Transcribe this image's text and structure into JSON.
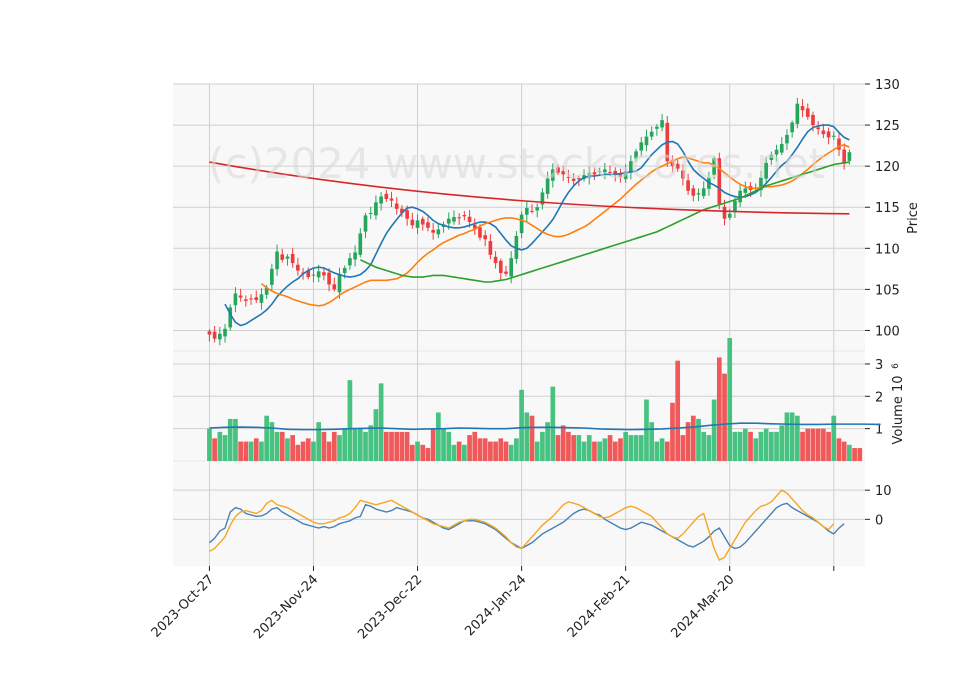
{
  "watermark": "(c)2024 www.stockscores.net",
  "chart_data": [
    {
      "type": "candlestick",
      "panel": "price",
      "ylabel": "Price",
      "ylim": [
        97.5,
        130
      ],
      "yticks": [
        100,
        105,
        110,
        115,
        120,
        125,
        130
      ],
      "x_ticks": [
        {
          "i": 0,
          "label": "2023-Oct-27"
        },
        {
          "i": 20,
          "label": "2023-Nov-24"
        },
        {
          "i": 40,
          "label": "2023-Dec-22"
        },
        {
          "i": 60,
          "label": "2024-Jan-24"
        },
        {
          "i": 80,
          "label": "2024-Feb-21"
        },
        {
          "i": 100,
          "label": "2024-Mar-20"
        },
        {
          "i": 120,
          "label": ""
        }
      ],
      "x_range": [
        -7,
        126
      ],
      "grid": true,
      "up_color": "#26a65b",
      "down_color": "#ef3b3b",
      "close": [
        99.5,
        99.0,
        99.6,
        100.2,
        102.8,
        104.5,
        104.0,
        103.6,
        103.9,
        103.7,
        104.4,
        105.2,
        107.5,
        109.6,
        108.6,
        109.0,
        108.2,
        107.3,
        107.0,
        106.5,
        106.8,
        107.2,
        106.7,
        105.6,
        105.0,
        106.9,
        107.6,
        108.8,
        109.5,
        111.8,
        114.0,
        114.3,
        115.6,
        116.3,
        116.0,
        115.8,
        114.8,
        114.3,
        113.6,
        112.8,
        113.4,
        112.9,
        112.5,
        111.9,
        112.3,
        112.9,
        113.6,
        113.8,
        113.7,
        113.9,
        113.2,
        112.4,
        111.3,
        111.1,
        109.2,
        108.2,
        107.0,
        106.9,
        108.8,
        111.5,
        114.1,
        114.9,
        114.5,
        115.0,
        116.8,
        118.5,
        119.6,
        119.2,
        119.0,
        118.6,
        118.2,
        118.4,
        118.9,
        119.2,
        119.0,
        119.4,
        119.6,
        119.2,
        118.9,
        118.7,
        119.4,
        120.6,
        121.8,
        122.9,
        123.6,
        124.2,
        124.8,
        125.6,
        120.6,
        120.0,
        119.7,
        118.5,
        117.0,
        116.4,
        116.7,
        117.3,
        118.6,
        121.0,
        115.4,
        113.6,
        114.2,
        115.8,
        117.0,
        117.3,
        117.1,
        117.4,
        118.6,
        120.4,
        121.4,
        122.0,
        122.7,
        123.8,
        125.3,
        127.6,
        126.8,
        126.0,
        125.0,
        124.5,
        123.9,
        123.5,
        123.7,
        122.0,
        120.3,
        121.7
      ],
      "moving_averages": [
        {
          "color": "#1f77b4",
          "values": [
            103.2,
            102.0,
            101.0,
            100.6,
            100.8,
            101.2,
            101.6,
            102.0,
            102.5,
            103.2,
            104.1,
            104.8,
            105.4,
            105.9,
            106.3,
            106.9,
            107.3,
            107.6,
            107.7,
            107.6,
            107.3,
            107.0,
            106.8,
            106.6,
            106.5,
            106.6,
            106.8,
            107.3,
            108.0,
            109.3,
            110.6,
            111.8,
            112.7,
            113.5,
            114.3,
            114.9,
            115.0,
            114.8,
            114.5,
            114.0,
            113.4,
            113.0,
            112.8,
            112.6,
            112.5,
            112.5,
            112.6,
            112.8,
            113.0,
            113.2,
            113.2,
            113.0,
            112.6,
            111.8,
            111.0,
            110.3,
            110.0,
            109.8,
            110.0,
            110.6,
            111.3,
            112.0,
            112.7,
            113.5,
            114.6,
            115.8,
            116.8,
            117.6,
            118.2,
            118.6,
            118.8,
            118.8,
            118.9,
            119.0,
            119.0,
            119.0,
            119.1,
            119.2,
            119.3,
            119.4,
            119.8,
            120.6,
            121.4,
            122.0,
            122.6,
            122.9,
            123.0,
            122.7,
            121.8,
            120.6,
            119.6,
            119.0,
            118.5,
            118.0,
            117.7,
            117.3,
            116.8,
            116.5,
            116.3,
            116.2,
            116.3,
            116.5,
            116.8,
            117.3,
            117.9,
            118.6,
            119.4,
            120.1,
            120.6,
            121.4,
            122.3,
            123.3,
            124.2,
            124.7,
            124.9,
            125.0,
            125.0,
            124.8,
            124.1,
            123.5,
            123.2
          ]
        },
        {
          "color": "#ff7f0e",
          "values": [
            105.7,
            105.2,
            104.8,
            104.5,
            104.3,
            104.1,
            103.8,
            103.6,
            103.4,
            103.2,
            103.1,
            103.0,
            103.1,
            103.4,
            103.8,
            104.3,
            104.7,
            105.0,
            105.3,
            105.6,
            105.9,
            106.1,
            106.1,
            106.1,
            106.1,
            106.2,
            106.3,
            106.6,
            107.0,
            107.6,
            108.3,
            108.9,
            109.4,
            109.8,
            110.3,
            110.7,
            111.0,
            111.3,
            111.6,
            111.8,
            112.1,
            112.3,
            112.7,
            113.0,
            113.2,
            113.4,
            113.6,
            113.7,
            113.7,
            113.6,
            113.4,
            113.2,
            112.8,
            112.4,
            112.0,
            111.7,
            111.5,
            111.4,
            111.5,
            111.7,
            112.0,
            112.3,
            112.6,
            113.0,
            113.5,
            114.0,
            114.5,
            115.0,
            115.5,
            116.0,
            116.6,
            117.2,
            117.8,
            118.3,
            118.8,
            119.3,
            119.7,
            120.0,
            120.3,
            120.6,
            120.9,
            121.1,
            121.0,
            120.8,
            120.6,
            120.4,
            120.4,
            120.1,
            119.7,
            119.2,
            118.7,
            118.2,
            117.8,
            117.5,
            117.3,
            117.3,
            117.4,
            117.5,
            117.5,
            117.6,
            117.7,
            117.9,
            118.2,
            118.6,
            119.1,
            119.6,
            120.2,
            120.7,
            121.2,
            121.6,
            122.0,
            122.4,
            122.6,
            122.3
          ]
        },
        {
          "color": "#2ca02c",
          "values": [
            108.6,
            108.3,
            108.0,
            107.7,
            107.5,
            107.3,
            107.1,
            106.9,
            106.7,
            106.6,
            106.5,
            106.5,
            106.5,
            106.6,
            106.7,
            106.7,
            106.7,
            106.6,
            106.5,
            106.4,
            106.3,
            106.2,
            106.1,
            106.0,
            105.9,
            105.9,
            106.0,
            106.1,
            106.2,
            106.4,
            106.6,
            106.8,
            107.0,
            107.2,
            107.4,
            107.6,
            107.8,
            108.0,
            108.2,
            108.4,
            108.6,
            108.8,
            109.0,
            109.2,
            109.4,
            109.6,
            109.8,
            110.0,
            110.2,
            110.4,
            110.6,
            110.8,
            111.0,
            111.2,
            111.4,
            111.6,
            111.8,
            112.0,
            112.3,
            112.6,
            112.9,
            113.2,
            113.5,
            113.8,
            114.1,
            114.4,
            114.7,
            114.9,
            115.1,
            115.3,
            115.5,
            115.7,
            115.9,
            116.1,
            116.4,
            116.7,
            117.0,
            117.3,
            117.6,
            117.8,
            118.0,
            118.2,
            118.4,
            118.6,
            118.8,
            119.0,
            119.2,
            119.4,
            119.6,
            119.8,
            120.0,
            120.2,
            120.3,
            120.4,
            120.5
          ]
        },
        {
          "color": "#d62728",
          "values": [
            120.5,
            114.2
          ]
        }
      ]
    },
    {
      "type": "bar",
      "panel": "volume",
      "ylabel": "Volume  10^6",
      "ylim": [
        0,
        3.4
      ],
      "yticks": [
        1,
        2,
        3
      ],
      "values": [
        1.0,
        0.7,
        0.9,
        0.8,
        1.3,
        1.3,
        0.6,
        0.6,
        0.6,
        0.7,
        0.6,
        1.4,
        1.2,
        0.9,
        0.9,
        0.7,
        0.8,
        0.5,
        0.6,
        0.7,
        0.6,
        1.2,
        0.9,
        0.6,
        0.9,
        0.8,
        1.0,
        2.5,
        1.0,
        1.0,
        0.9,
        1.1,
        1.6,
        2.4,
        0.9,
        0.9,
        0.9,
        0.9,
        0.9,
        0.5,
        0.6,
        0.5,
        0.4,
        1.0,
        1.5,
        1.0,
        0.9,
        0.5,
        0.6,
        0.5,
        0.8,
        0.9,
        0.7,
        0.7,
        0.6,
        0.6,
        0.7,
        0.6,
        0.5,
        0.7,
        2.2,
        1.5,
        1.4,
        0.6,
        0.9,
        1.2,
        2.3,
        0.8,
        1.1,
        0.9,
        0.8,
        0.8,
        0.6,
        0.8,
        0.6,
        0.6,
        0.7,
        0.8,
        0.6,
        0.7,
        0.9,
        0.8,
        0.8,
        0.8,
        1.9,
        1.2,
        0.6,
        0.7,
        0.6,
        1.8,
        3.1,
        0.8,
        1.2,
        1.4,
        1.3,
        0.9,
        0.8,
        1.9,
        3.2,
        2.7,
        3.8,
        0.9,
        0.9,
        1.0,
        0.9,
        0.7,
        0.9,
        1.0,
        0.9,
        0.9,
        1.1,
        1.5,
        1.5,
        1.4,
        0.9,
        1.0,
        1.0,
        1.0,
        1.0,
        0.9,
        1.4,
        0.7,
        0.6,
        0.5,
        0.4,
        0.4
      ],
      "avg_line": {
        "color": "#1f77b4",
        "values": [
          1.02,
          1.04,
          1.05,
          1.04,
          1.02,
          0.98,
          0.97,
          0.97,
          0.98,
          1.0,
          1.01,
          1.02,
          1.0,
          0.98,
          0.99,
          1.0,
          1.02,
          1.01,
          1.0,
          1.0,
          1.03,
          1.04,
          1.04,
          1.03,
          1.02,
          0.99,
          0.98,
          0.97,
          0.98,
          0.99,
          1.02,
          1.05,
          1.1,
          1.14,
          1.17,
          1.17,
          1.15,
          1.14,
          1.13,
          1.13,
          1.14,
          1.14,
          1.14,
          1.13
        ]
      }
    },
    {
      "type": "line",
      "panel": "oscillator",
      "ylim": [
        -16,
        20
      ],
      "yticks": [
        0,
        10
      ],
      "series": [
        {
          "color": "#4682b4",
          "values": [
            -8.0,
            -6.5,
            -4.0,
            -3.0,
            2.5,
            4.0,
            3.5,
            2.0,
            1.5,
            1.0,
            1.2,
            2.0,
            3.5,
            4.0,
            2.5,
            1.5,
            0.5,
            -0.5,
            -1.5,
            -2.0,
            -2.5,
            -3.0,
            -2.5,
            -3.0,
            -2.5,
            -1.5,
            -1.0,
            -0.5,
            0.5,
            1.0,
            5.0,
            4.5,
            3.5,
            3.0,
            2.5,
            3.0,
            4.0,
            3.5,
            3.0,
            2.5,
            1.5,
            0.5,
            0.0,
            -1.0,
            -2.0,
            -3.0,
            -3.5,
            -2.5,
            -1.5,
            -0.5,
            -0.5,
            -0.5,
            -1.0,
            -1.5,
            -2.5,
            -3.5,
            -5.0,
            -6.5,
            -8.0,
            -9.0,
            -10.0,
            -9.0,
            -8.0,
            -6.5,
            -5.0,
            -4.0,
            -3.0,
            -2.0,
            -1.0,
            0.5,
            2.0,
            3.0,
            3.5,
            3.0,
            2.0,
            1.5,
            0.0,
            -1.0,
            -2.0,
            -3.0,
            -3.5,
            -3.0,
            -2.0,
            -1.0,
            -1.5,
            -2.0,
            -3.0,
            -4.0,
            -5.0,
            -6.0,
            -7.0,
            -8.0,
            -9.0,
            -9.5,
            -8.5,
            -7.5,
            -6.0,
            -4.0,
            -3.0,
            -6.0,
            -9.0,
            -10.0,
            -9.5,
            -8.0,
            -6.0,
            -4.0,
            -2.0,
            0.0,
            2.0,
            4.0,
            5.0,
            5.5,
            4.0,
            3.0,
            2.0,
            1.0,
            0.0,
            -1.0,
            -2.5,
            -4.0,
            -5.0,
            -3.0,
            -1.5
          ]
        },
        {
          "color": "#f5a623",
          "values": [
            -11.0,
            -10.0,
            -8.0,
            -6.0,
            -2.0,
            1.0,
            2.5,
            3.0,
            2.5,
            2.0,
            3.0,
            5.5,
            6.5,
            5.0,
            4.5,
            4.0,
            3.0,
            2.0,
            1.0,
            0.0,
            -1.0,
            -1.5,
            -1.5,
            -1.0,
            -0.5,
            0.5,
            1.0,
            2.0,
            4.0,
            6.5,
            6.0,
            5.5,
            5.0,
            5.5,
            6.0,
            6.5,
            5.5,
            4.5,
            3.5,
            2.5,
            1.5,
            0.5,
            -0.5,
            -1.5,
            -2.0,
            -2.5,
            -3.0,
            -2.0,
            -1.0,
            -0.5,
            0.0,
            0.0,
            -0.5,
            -1.0,
            -2.0,
            -3.0,
            -4.5,
            -6.0,
            -8.0,
            -9.5,
            -10.0,
            -8.0,
            -6.0,
            -4.0,
            -2.0,
            -0.5,
            1.0,
            3.0,
            5.0,
            6.0,
            5.5,
            5.0,
            4.0,
            3.0,
            2.0,
            1.0,
            0.5,
            1.0,
            2.0,
            3.0,
            4.0,
            4.5,
            4.0,
            3.0,
            2.0,
            1.0,
            -1.0,
            -3.0,
            -5.0,
            -6.0,
            -6.5,
            -5.0,
            -3.0,
            -1.0,
            1.0,
            2.0,
            -4.0,
            -10.0,
            -14.0,
            -13.0,
            -10.0,
            -7.0,
            -4.0,
            -1.0,
            1.0,
            3.0,
            4.5,
            5.0,
            6.0,
            8.0,
            10.0,
            9.0,
            7.0,
            5.0,
            3.0,
            1.5,
            0.5,
            -1.0,
            -2.5,
            -3.5,
            -1.5
          ]
        }
      ]
    }
  ]
}
